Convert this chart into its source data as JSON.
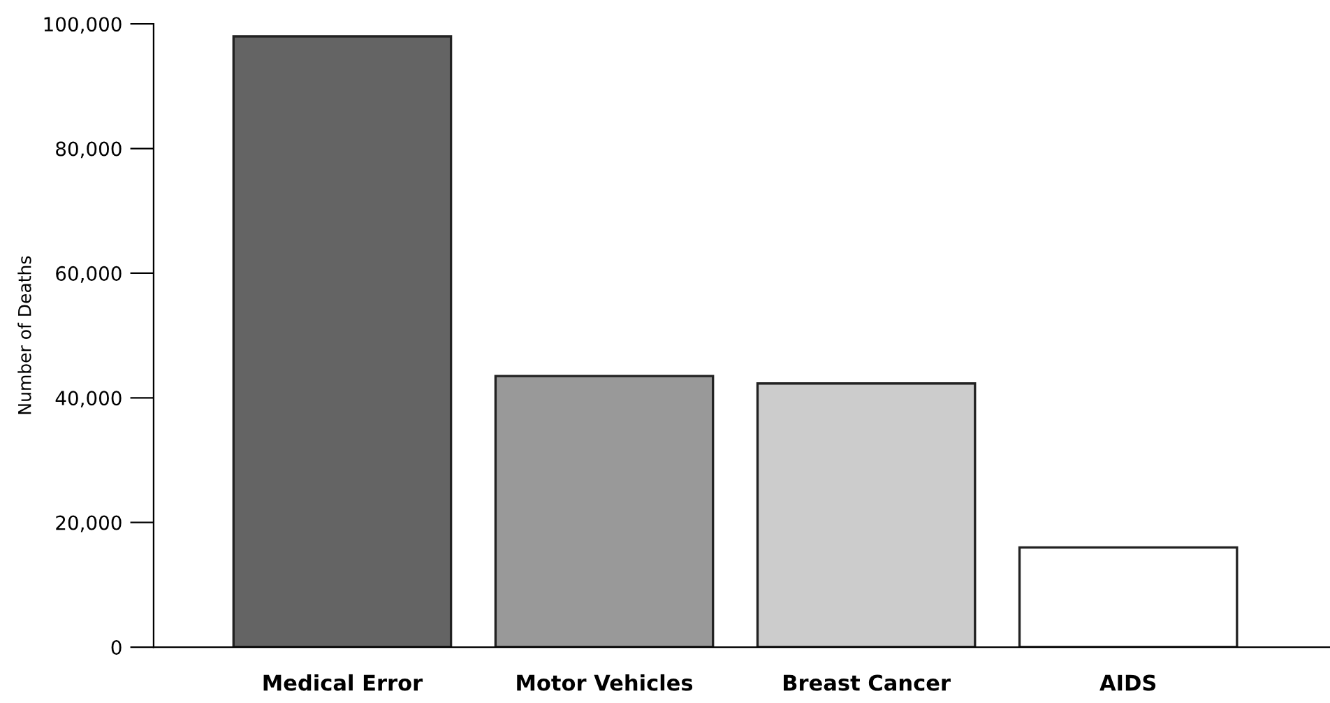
{
  "chart_data": {
    "type": "bar",
    "ylabel": "Number of Deaths",
    "categories": [
      "Medical Error",
      "Motor Vehicles",
      "Breast Cancer",
      "AIDS"
    ],
    "values": [
      98000,
      43500,
      42300,
      16000
    ],
    "colors": [
      "#646464",
      "#999999",
      "#cccccc",
      "#ffffff"
    ],
    "ylim": [
      0,
      100000
    ],
    "yticks": [
      {
        "value": 0,
        "label": "0"
      },
      {
        "value": 20000,
        "label": "20,000"
      },
      {
        "value": 40000,
        "label": "40,000"
      },
      {
        "value": 60000,
        "label": "60,000"
      },
      {
        "value": 80000,
        "label": "80,000"
      },
      {
        "value": 100000,
        "label": "100,000"
      }
    ],
    "grid": false,
    "legend": false
  }
}
